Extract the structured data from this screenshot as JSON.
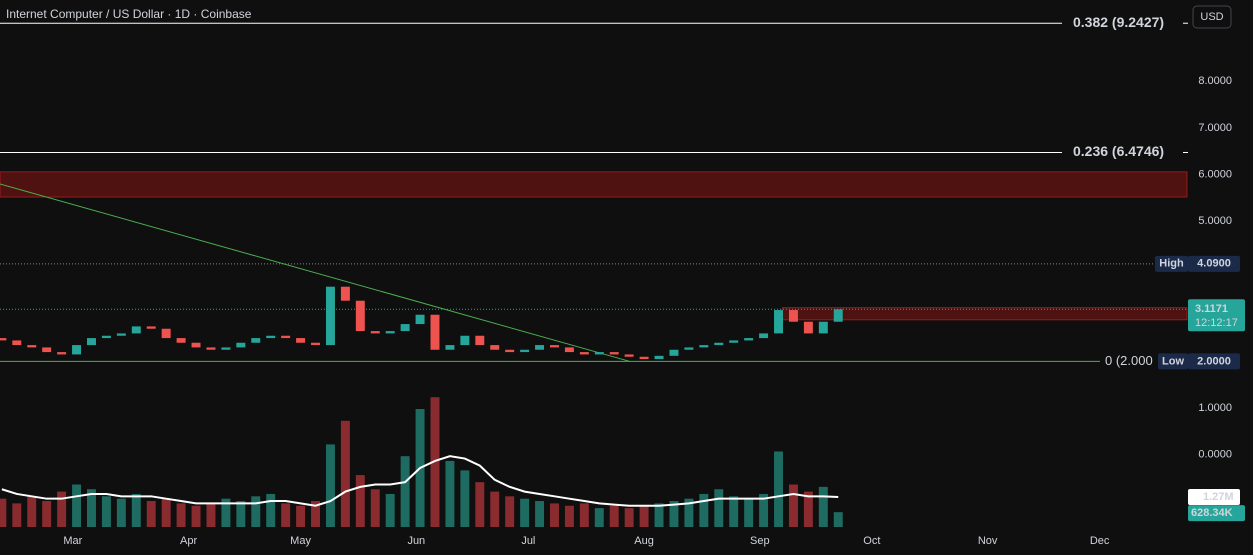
{
  "chart_data": {
    "type": "candlestick",
    "title": "Internet Computer / US Dollar · 1D · Coinbase",
    "currency": "USD",
    "x": [
      42,
      46,
      50,
      54,
      58,
      62,
      66,
      70,
      74,
      78,
      82,
      86,
      90,
      94,
      98,
      102,
      106,
      110,
      114,
      118,
      122,
      126,
      130,
      134,
      138,
      142,
      146,
      150,
      154,
      158,
      162,
      166,
      170,
      174,
      178,
      182,
      186,
      190,
      194,
      198,
      202,
      206,
      210,
      214,
      218,
      222,
      226,
      230,
      234,
      238,
      242,
      246,
      250,
      254,
      258,
      262,
      266
    ],
    "open": [
      2.5,
      2.45,
      2.35,
      2.3,
      2.2,
      2.15,
      2.35,
      2.5,
      2.55,
      2.6,
      2.75,
      2.7,
      2.5,
      2.4,
      2.3,
      2.25,
      2.3,
      2.4,
      2.5,
      2.55,
      2.5,
      2.4,
      2.35,
      3.6,
      3.3,
      2.65,
      2.6,
      2.65,
      2.8,
      3.0,
      2.25,
      2.35,
      2.55,
      2.35,
      2.25,
      2.2,
      2.25,
      2.35,
      2.3,
      2.2,
      2.15,
      2.2,
      2.15,
      2.1,
      2.05,
      2.12,
      2.25,
      2.3,
      2.35,
      2.4,
      2.45,
      2.5,
      2.6,
      3.1,
      2.85,
      2.6,
      2.85
    ],
    "high": {
      "label": "High",
      "value": 4.09,
      "value_label": "4.0900"
    },
    "low": {
      "label": "Low",
      "value": 2.0,
      "value_label": "2.0000"
    },
    "close": [
      2.45,
      2.35,
      2.3,
      2.2,
      2.15,
      2.35,
      2.5,
      2.55,
      2.6,
      2.75,
      2.7,
      2.5,
      2.4,
      2.3,
      2.25,
      2.3,
      2.4,
      2.5,
      2.55,
      2.5,
      2.4,
      2.35,
      3.6,
      3.3,
      2.65,
      2.6,
      2.65,
      2.8,
      3.0,
      2.25,
      2.35,
      2.55,
      2.35,
      2.25,
      2.2,
      2.25,
      2.35,
      2.3,
      2.2,
      2.15,
      2.2,
      2.15,
      2.1,
      2.05,
      2.12,
      2.25,
      2.3,
      2.35,
      2.4,
      2.45,
      2.5,
      2.6,
      3.1,
      2.85,
      2.6,
      2.85,
      3.1171
    ],
    "volume": [
      1.2,
      1.0,
      1.3,
      1.1,
      1.5,
      1.8,
      1.6,
      1.3,
      1.2,
      1.4,
      1.1,
      1.2,
      1.0,
      0.9,
      1.0,
      1.2,
      1.1,
      1.3,
      1.4,
      1.0,
      0.9,
      1.1,
      3.5,
      4.5,
      2.2,
      1.6,
      1.4,
      3.0,
      5.0,
      5.5,
      2.8,
      2.4,
      1.9,
      1.5,
      1.3,
      1.2,
      1.1,
      1.0,
      0.9,
      1.0,
      0.8,
      0.9,
      0.8,
      0.9,
      1.0,
      1.1,
      1.2,
      1.4,
      1.6,
      1.3,
      1.2,
      1.4,
      3.2,
      1.8,
      1.5,
      1.7,
      0.62834
    ],
    "volume_ma": [
      1.6,
      1.4,
      1.3,
      1.2,
      1.2,
      1.3,
      1.4,
      1.4,
      1.3,
      1.3,
      1.3,
      1.2,
      1.1,
      1.0,
      1.0,
      1.0,
      1.0,
      1.0,
      1.1,
      1.1,
      1.0,
      0.9,
      1.1,
      1.5,
      1.7,
      1.8,
      1.8,
      1.9,
      2.5,
      2.8,
      3.0,
      2.9,
      2.6,
      2.0,
      1.7,
      1.5,
      1.4,
      1.3,
      1.2,
      1.1,
      1.0,
      0.95,
      0.9,
      0.9,
      0.9,
      0.95,
      1.0,
      1.1,
      1.2,
      1.2,
      1.2,
      1.2,
      1.3,
      1.4,
      1.3,
      1.3,
      1.27
    ],
    "volume_ma_label": {
      "value": 1.27,
      "label": "1.27M"
    },
    "volume_label": {
      "value": 0.62834,
      "label": "628.34K"
    },
    "volume_ylim": [
      0,
      22.33
    ],
    "up_color": "#26a69a",
    "down_color": "#ef5350",
    "xlim": [
      41.5,
      359.4
    ],
    "xticks": [
      {
        "value": 61,
        "label": "Mar"
      },
      {
        "value": 92,
        "label": "Apr"
      },
      {
        "value": 122,
        "label": "May"
      },
      {
        "value": 153,
        "label": "Jun"
      },
      {
        "value": 183,
        "label": "Jul"
      },
      {
        "value": 214,
        "label": "Aug"
      },
      {
        "value": 245,
        "label": "Sep"
      },
      {
        "value": 275,
        "label": "Oct"
      },
      {
        "value": 306,
        "label": "Nov"
      },
      {
        "value": 336,
        "label": "Dec"
      }
    ],
    "ylim": [
      -1.61,
      9.74
    ],
    "yticks": [
      {
        "value": 8,
        "label": "8.0000"
      },
      {
        "value": 7,
        "label": "7.0000"
      },
      {
        "value": 6,
        "label": "6.0000"
      },
      {
        "value": 5,
        "label": "5.0000"
      },
      {
        "value": 1,
        "label": "1.0000"
      },
      {
        "value": 0,
        "label": "0.0000"
      }
    ],
    "fib_levels": [
      {
        "value": 9.2427,
        "label": "0.382 (9.2427)"
      },
      {
        "value": 6.4746,
        "label": "0.236 (6.4746)"
      },
      {
        "value": 2.0,
        "label": "0 (2.000"
      }
    ],
    "zones": [
      {
        "from": 5.52,
        "to": 6.06,
        "start": 41.5
      },
      {
        "from": 2.89,
        "to": 3.15,
        "start": 251
      }
    ],
    "trendline": {
      "x": [
        41.5,
        210.2
      ],
      "y": [
        5.8,
        2.0
      ],
      "color": "#4caf50"
    },
    "last": {
      "value": 3.1171,
      "value_label": "3.1171",
      "countdown": "12:12:17"
    }
  }
}
